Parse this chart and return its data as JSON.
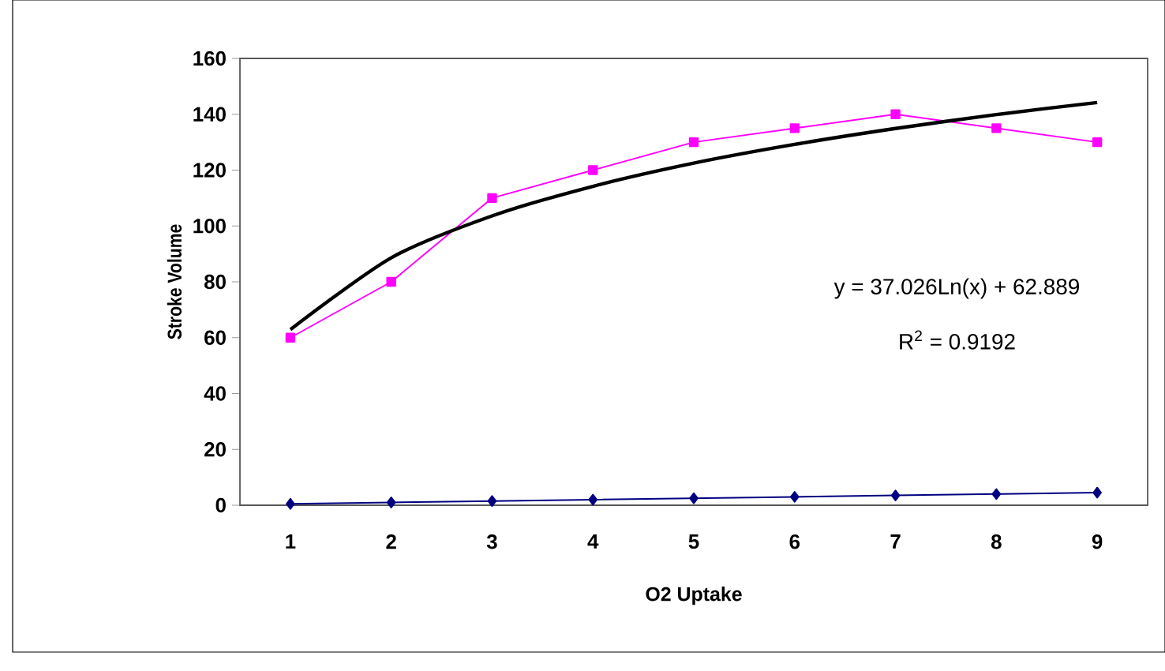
{
  "chart_data": {
    "type": "line",
    "xlabel": "O2 Uptake",
    "ylabel": "Stroke Volume",
    "categories": [
      "1",
      "2",
      "3",
      "4",
      "5",
      "6",
      "7",
      "8",
      "9"
    ],
    "series": [
      {
        "color": "#000080",
        "marker": "diamond",
        "values": [
          0.5,
          1,
          1.5,
          2,
          2.5,
          3,
          3.5,
          4,
          4.5
        ]
      },
      {
        "color": "#ff00ff",
        "marker": "square",
        "values": [
          60,
          80,
          110,
          120,
          130,
          135,
          140,
          135,
          130
        ]
      },
      {
        "color": "#000000",
        "marker": "none",
        "values": [
          62.9,
          88.6,
          103.6,
          114.2,
          122.5,
          129.2,
          134.9,
          139.9,
          144.2
        ]
      }
    ],
    "ylim": [
      0,
      160
    ],
    "yticks": [
      0,
      20,
      40,
      60,
      80,
      100,
      120,
      140,
      160
    ],
    "grid": false,
    "annotations": [
      "y = 37.026Ln(x) + 62.889",
      "R$^{2}$ = 0.9192"
    ]
  }
}
